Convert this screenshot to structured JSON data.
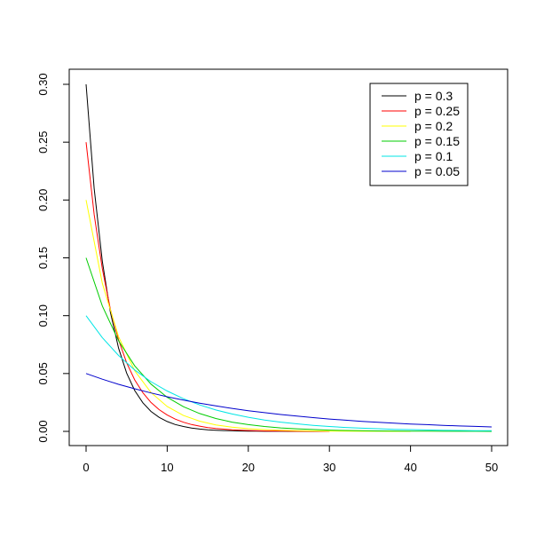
{
  "chart_data": {
    "type": "line",
    "title": "",
    "xlabel": "",
    "ylabel": "",
    "xlim": [
      0,
      50
    ],
    "ylim": [
      0,
      0.3
    ],
    "x_ticks": [
      "0",
      "10",
      "20",
      "30",
      "40",
      "50"
    ],
    "y_ticks": [
      "0.00",
      "0.05",
      "0.10",
      "0.15",
      "0.20",
      "0.25",
      "0.30"
    ],
    "grid": false,
    "legend_position": "top-right",
    "series": [
      {
        "name": "p = 0.3",
        "color": "#000000",
        "x": [
          0,
          1,
          2,
          3,
          4,
          5,
          6,
          7,
          8,
          9,
          10,
          11,
          12,
          13,
          14,
          15,
          16,
          17,
          18,
          19,
          20,
          21,
          22,
          23,
          24,
          25,
          26,
          27,
          28,
          29,
          30
        ],
        "y": [
          0.3,
          0.21,
          0.147,
          0.1029,
          0.072,
          0.0504,
          0.0353,
          0.0247,
          0.0173,
          0.0121,
          0.0085,
          0.0059,
          0.0042,
          0.0029,
          0.002,
          0.0014,
          0.001,
          0.0007,
          0.0005,
          0.0003,
          0.0002,
          0.0002,
          0.0001,
          0.0001,
          0.0001,
          0.0,
          0.0,
          0.0,
          0.0,
          0.0,
          0.0
        ]
      },
      {
        "name": "p = 0.25",
        "color": "#ff0000",
        "x": [
          0,
          1,
          2,
          3,
          4,
          5,
          6,
          7,
          8,
          9,
          10,
          11,
          12,
          13,
          14,
          15,
          16,
          17,
          18,
          19,
          20,
          21,
          22,
          23,
          24,
          25,
          26,
          27,
          28,
          29,
          30
        ],
        "y": [
          0.25,
          0.1875,
          0.1406,
          0.1055,
          0.0791,
          0.0593,
          0.0445,
          0.0334,
          0.025,
          0.0188,
          0.0141,
          0.0106,
          0.0079,
          0.0059,
          0.0045,
          0.0033,
          0.0025,
          0.0019,
          0.0014,
          0.0011,
          0.0008,
          0.0006,
          0.0004,
          0.0003,
          0.0003,
          0.0002,
          0.0001,
          0.0001,
          0.0001,
          0.0001,
          0.0
        ]
      },
      {
        "name": "p = 0.2",
        "color": "#ffff00",
        "x": [
          0,
          2,
          4,
          6,
          8,
          10,
          12,
          14,
          16,
          18,
          20,
          22,
          24,
          26,
          28,
          30,
          32,
          34,
          36,
          38,
          40
        ],
        "y": [
          0.2,
          0.128,
          0.0819,
          0.0524,
          0.0336,
          0.0215,
          0.0137,
          0.0088,
          0.0056,
          0.0036,
          0.0023,
          0.0015,
          0.0009,
          0.0006,
          0.0004,
          0.0002,
          0.0002,
          0.0001,
          0.0001,
          0.0,
          0.0
        ]
      },
      {
        "name": "p = 0.15",
        "color": "#00cc00",
        "x": [
          0,
          2,
          4,
          6,
          8,
          10,
          12,
          14,
          16,
          18,
          20,
          22,
          24,
          26,
          28,
          30,
          32,
          34,
          36,
          38,
          40,
          42,
          44,
          46,
          48,
          50
        ],
        "y": [
          0.15,
          0.1084,
          0.0783,
          0.0566,
          0.0409,
          0.0295,
          0.0213,
          0.0154,
          0.0111,
          0.008,
          0.0058,
          0.0042,
          0.003,
          0.0022,
          0.0016,
          0.0011,
          0.0008,
          0.0006,
          0.0004,
          0.0003,
          0.0002,
          0.0002,
          0.0001,
          0.0001,
          0.0001,
          0.0
        ]
      },
      {
        "name": "p = 0.1",
        "color": "#00e5e5",
        "x": [
          0,
          2,
          4,
          6,
          8,
          10,
          12,
          14,
          16,
          18,
          20,
          22,
          24,
          26,
          28,
          30,
          32,
          34,
          36,
          38,
          40,
          42,
          44,
          46,
          48,
          50
        ],
        "y": [
          0.1,
          0.081,
          0.0656,
          0.0531,
          0.043,
          0.0349,
          0.0282,
          0.0229,
          0.0185,
          0.015,
          0.0122,
          0.0098,
          0.008,
          0.0065,
          0.0052,
          0.0042,
          0.0034,
          0.0028,
          0.0023,
          0.0018,
          0.0015,
          0.0012,
          0.001,
          0.0008,
          0.0006,
          0.0005
        ]
      },
      {
        "name": "p = 0.05",
        "color": "#0000cc",
        "x": [
          0,
          2,
          4,
          6,
          8,
          10,
          12,
          14,
          16,
          18,
          20,
          22,
          24,
          26,
          28,
          30,
          32,
          34,
          36,
          38,
          40,
          42,
          44,
          46,
          48,
          50
        ],
        "y": [
          0.05,
          0.0451,
          0.0407,
          0.0368,
          0.0332,
          0.0299,
          0.027,
          0.0244,
          0.022,
          0.0199,
          0.0179,
          0.0162,
          0.0146,
          0.0132,
          0.0119,
          0.0107,
          0.0097,
          0.0087,
          0.0079,
          0.0071,
          0.0064,
          0.0058,
          0.0052,
          0.0047,
          0.0043,
          0.0038
        ]
      }
    ]
  }
}
